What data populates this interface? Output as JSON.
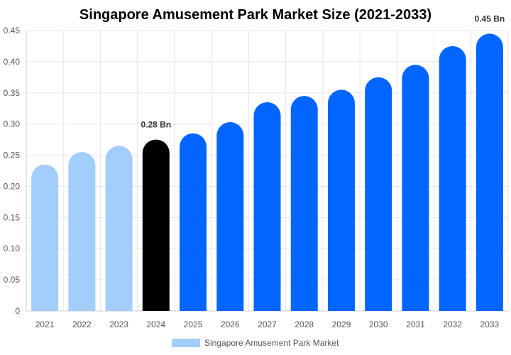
{
  "chart_data": {
    "type": "bar",
    "title": "Singapore Amusement Park Market Size (2021-2033)",
    "xlabel": "",
    "ylabel": "",
    "categories": [
      "2021",
      "2022",
      "2023",
      "2024",
      "2025",
      "2026",
      "2027",
      "2028",
      "2029",
      "2030",
      "2031",
      "2032",
      "2033"
    ],
    "series": [
      {
        "name": "Singapore Amusement Park Market",
        "values": [
          0.235,
          0.255,
          0.265,
          0.275,
          0.285,
          0.303,
          0.335,
          0.345,
          0.355,
          0.375,
          0.395,
          0.425,
          0.445
        ]
      }
    ],
    "ylim": [
      0,
      0.45
    ],
    "yticks": [
      "0",
      "0.05",
      "0.10",
      "0.15",
      "0.20",
      "0.25",
      "0.30",
      "0.35",
      "0.40",
      "0.45"
    ],
    "data_labels": [
      {
        "category": "2024",
        "text": "0.28 Bn"
      },
      {
        "category": "2033",
        "text": "0.45 Bn"
      }
    ],
    "bar_colors": {
      "historical": "#a3cdfb",
      "base_year": "#000000",
      "forecast": "#0066ff"
    },
    "legend": {
      "position": "bottom-center",
      "label": "Singapore Amusement Park Market",
      "swatch_color": "#a3cdfb"
    },
    "grid": true,
    "grid_color": "#e6e6e6"
  }
}
